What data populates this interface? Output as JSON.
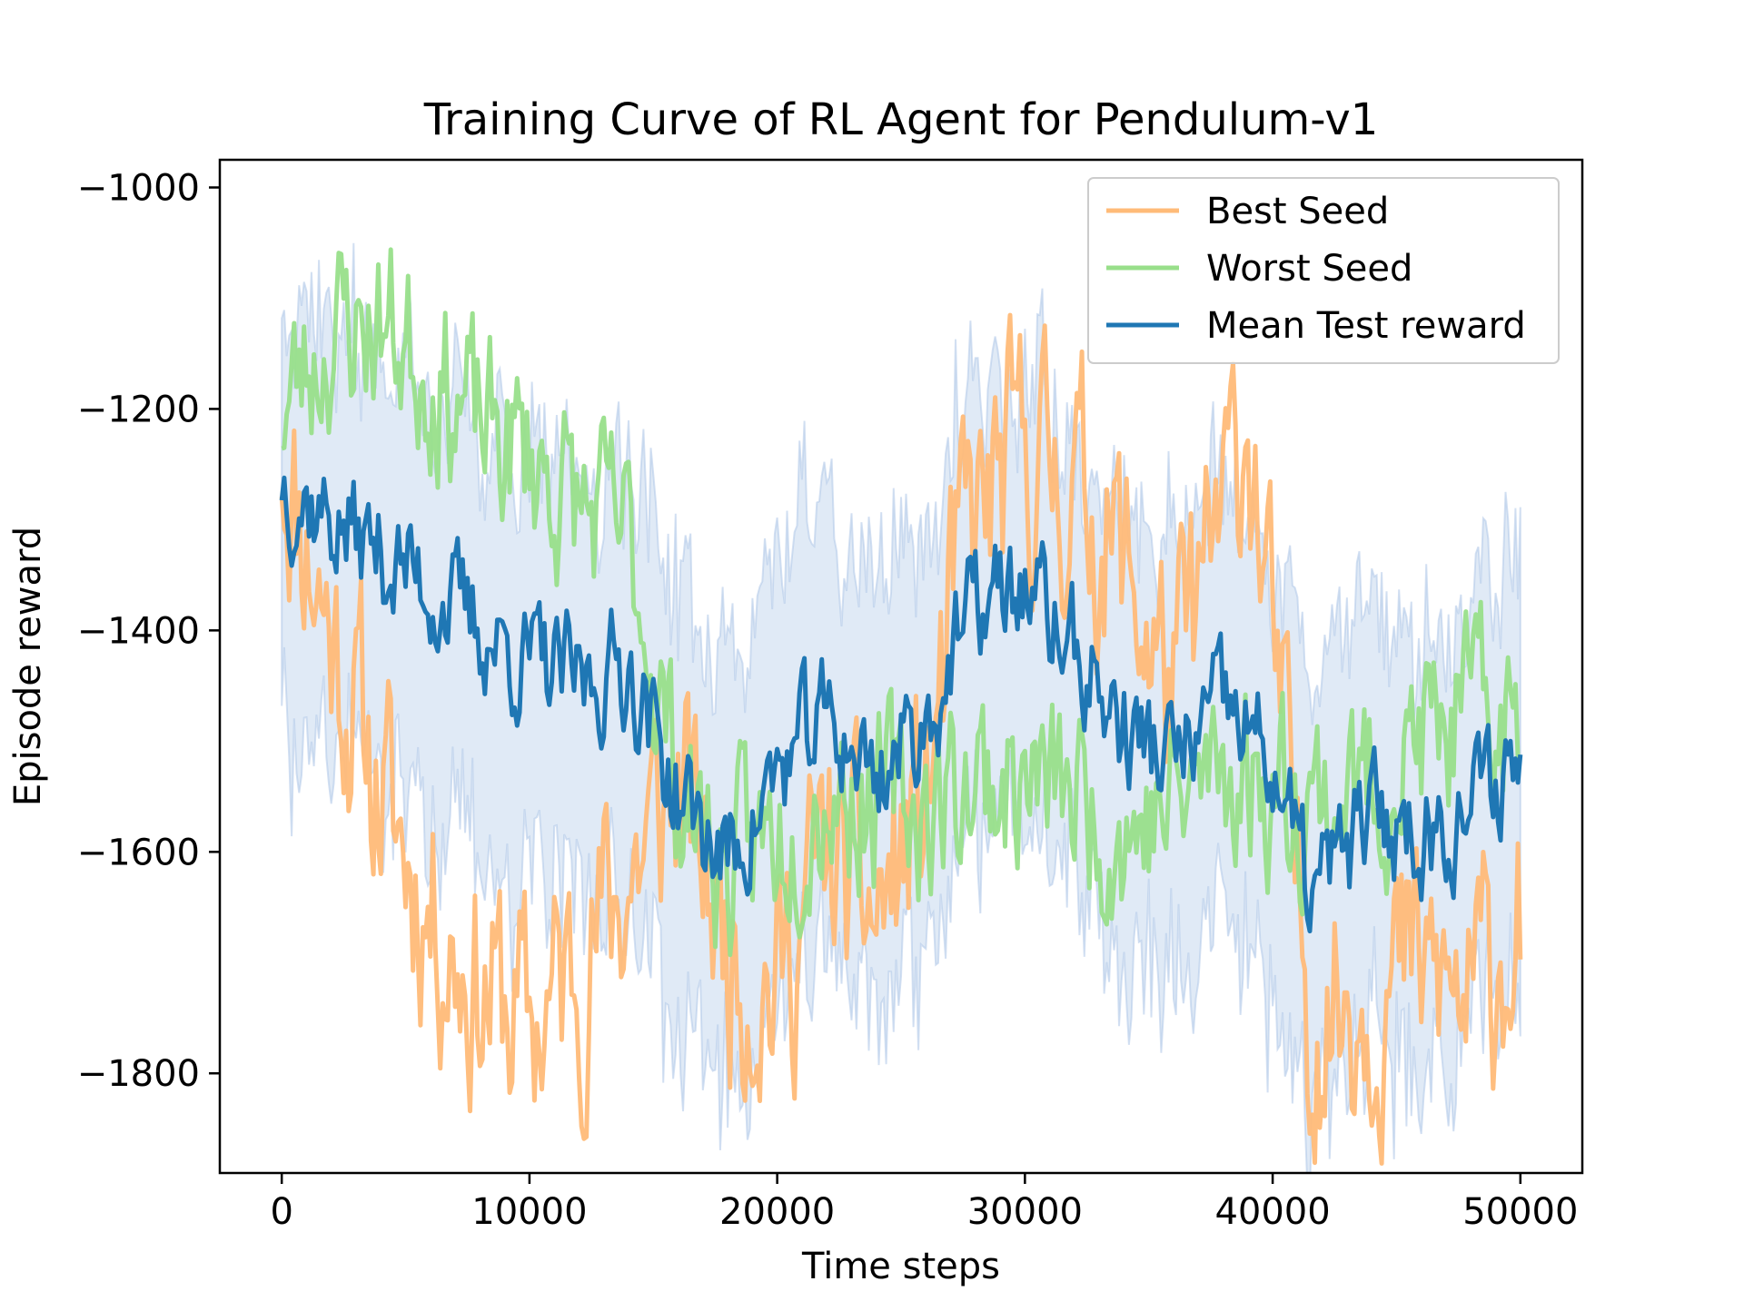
{
  "chart_data": {
    "type": "line",
    "title": "Training Curve of RL Agent for Pendulum-v1",
    "xlabel": "Time steps",
    "ylabel": "Episode reward",
    "xlim": [
      -2500,
      52500
    ],
    "ylim": [
      -1890,
      -975
    ],
    "xticks": [
      0,
      10000,
      20000,
      30000,
      40000,
      50000
    ],
    "yticks": [
      -1800,
      -1600,
      -1400,
      -1200,
      -1000
    ],
    "grid": false,
    "legend": "top-right",
    "colors": {
      "best": "#ffbb78",
      "worst": "#98df8a",
      "mean": "#1f77b4",
      "band": "#aec7e8"
    },
    "series": [
      {
        "name": "Best Seed",
        "x": [
          0,
          2000,
          4000,
          6000,
          8000,
          10000,
          12000,
          14000,
          16000,
          18000,
          20000,
          22000,
          24000,
          26000,
          27500,
          30000,
          32000,
          34000,
          36000,
          38000,
          39000,
          40000,
          41500,
          44000,
          46000,
          48000,
          50000
        ],
        "y": [
          -1230,
          -1400,
          -1550,
          -1650,
          -1720,
          -1760,
          -1700,
          -1620,
          -1540,
          -1680,
          -1720,
          -1600,
          -1660,
          -1560,
          -1320,
          -1240,
          -1270,
          -1340,
          -1460,
          -1300,
          -1200,
          -1420,
          -1740,
          -1720,
          -1710,
          -1740,
          -1650
        ]
      },
      {
        "name": "Worst Seed",
        "x": [
          0,
          2000,
          4000,
          6000,
          8000,
          10000,
          12000,
          14000,
          16000,
          18000,
          20000,
          22000,
          24000,
          26000,
          28000,
          30000,
          32000,
          34000,
          36000,
          38000,
          40000,
          42000,
          44000,
          46000,
          48000,
          50000
        ],
        "y": [
          -1200,
          -1130,
          -1120,
          -1160,
          -1220,
          -1240,
          -1290,
          -1320,
          -1540,
          -1620,
          -1580,
          -1540,
          -1550,
          -1560,
          -1530,
          -1540,
          -1550,
          -1580,
          -1560,
          -1520,
          -1540,
          -1550,
          -1540,
          -1500,
          -1480,
          -1490
        ]
      },
      {
        "name": "Mean Test reward",
        "x": [
          0,
          2000,
          4000,
          6000,
          8000,
          10000,
          12000,
          14000,
          16000,
          18000,
          20000,
          22000,
          24000,
          26000,
          28000,
          30000,
          32000,
          34000,
          36000,
          38000,
          40000,
          41500,
          44000,
          46000,
          48000,
          50000
        ],
        "y": [
          -1260,
          -1300,
          -1330,
          -1360,
          -1400,
          -1430,
          -1450,
          -1430,
          -1550,
          -1610,
          -1530,
          -1480,
          -1530,
          -1480,
          -1380,
          -1360,
          -1420,
          -1490,
          -1520,
          -1470,
          -1520,
          -1640,
          -1570,
          -1580,
          -1560,
          -1510
        ]
      }
    ]
  }
}
